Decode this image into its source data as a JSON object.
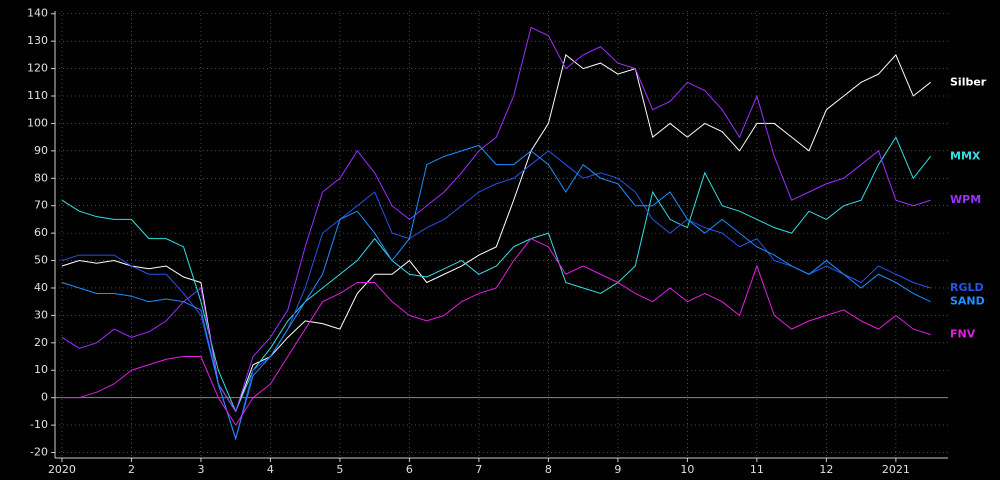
{
  "chart_data": {
    "type": "line",
    "x": [
      0,
      0.25,
      0.5,
      0.75,
      1,
      1.25,
      1.5,
      1.75,
      2,
      2.25,
      2.5,
      2.75,
      3,
      3.25,
      3.5,
      3.75,
      4,
      4.25,
      4.5,
      4.75,
      5,
      5.25,
      5.5,
      5.75,
      6,
      6.25,
      6.5,
      6.75,
      7,
      7.25,
      7.5,
      7.75,
      8,
      8.25,
      8.5,
      8.75,
      9,
      9.25,
      9.5,
      9.75,
      10,
      10.25,
      10.5,
      10.75,
      11,
      11.25,
      11.5,
      11.75,
      12,
      12.25,
      12.5
    ],
    "xlim": [
      -0.1,
      12.75
    ],
    "xticks": [
      {
        "value": 0,
        "label": "2020"
      },
      {
        "value": 1,
        "label": "2"
      },
      {
        "value": 2,
        "label": "3"
      },
      {
        "value": 3,
        "label": "4"
      },
      {
        "value": 4,
        "label": "5"
      },
      {
        "value": 5,
        "label": "6"
      },
      {
        "value": 6,
        "label": "7"
      },
      {
        "value": 7,
        "label": "8"
      },
      {
        "value": 8,
        "label": "9"
      },
      {
        "value": 9,
        "label": "10"
      },
      {
        "value": 10,
        "label": "11"
      },
      {
        "value": 11,
        "label": "12"
      },
      {
        "value": 12,
        "label": "2021"
      }
    ],
    "ylim": [
      -22,
      141
    ],
    "yticks": [
      -20,
      -10,
      0,
      10,
      20,
      30,
      40,
      50,
      60,
      70,
      80,
      90,
      100,
      110,
      120,
      130,
      140
    ],
    "grid": true,
    "series": [
      {
        "name": "Silber",
        "color": "#ffffff",
        "values": [
          48,
          50,
          49,
          50,
          48,
          47,
          48,
          44,
          42,
          5,
          -5,
          12,
          15,
          22,
          28,
          27,
          25,
          38,
          45,
          45,
          50,
          42,
          45,
          48,
          52,
          55,
          72,
          90,
          100,
          125,
          120,
          122,
          118,
          120,
          95,
          100,
          95,
          100,
          97,
          90,
          100,
          100,
          95,
          90,
          105,
          110,
          115,
          118,
          125,
          110,
          115
        ]
      },
      {
        "name": "MMX",
        "color": "#33e0e0",
        "values": [
          72,
          68,
          66,
          65,
          65,
          58,
          58,
          55,
          35,
          10,
          -5,
          10,
          18,
          28,
          35,
          40,
          45,
          50,
          58,
          50,
          45,
          44,
          47,
          50,
          45,
          48,
          55,
          58,
          60,
          42,
          40,
          38,
          42,
          48,
          75,
          65,
          62,
          82,
          70,
          68,
          65,
          62,
          60,
          68,
          65,
          70,
          72,
          85,
          95,
          80,
          88
        ]
      },
      {
        "name": "WPM",
        "color": "#9b30ff",
        "values": [
          22,
          18,
          20,
          25,
          22,
          24,
          28,
          35,
          40,
          5,
          -5,
          15,
          22,
          32,
          55,
          75,
          80,
          90,
          82,
          70,
          65,
          70,
          75,
          82,
          90,
          95,
          110,
          135,
          132,
          120,
          125,
          128,
          122,
          120,
          105,
          108,
          115,
          112,
          105,
          95,
          110,
          88,
          72,
          75,
          78,
          80,
          85,
          90,
          72,
          70,
          72
        ]
      },
      {
        "name": "RGLD",
        "color": "#2a52e8",
        "values": [
          50,
          52,
          52,
          52,
          48,
          45,
          45,
          38,
          30,
          5,
          -15,
          10,
          15,
          25,
          40,
          60,
          65,
          70,
          75,
          60,
          58,
          62,
          65,
          70,
          75,
          78,
          80,
          85,
          90,
          85,
          80,
          82,
          80,
          75,
          65,
          60,
          65,
          62,
          60,
          55,
          58,
          50,
          48,
          45,
          48,
          45,
          42,
          48,
          45,
          42,
          40
        ]
      },
      {
        "name": "SAND",
        "color": "#1e90ff",
        "values": [
          42,
          40,
          38,
          38,
          37,
          35,
          36,
          35,
          32,
          5,
          -15,
          8,
          15,
          25,
          35,
          45,
          65,
          68,
          60,
          50,
          58,
          85,
          88,
          90,
          92,
          85,
          85,
          90,
          85,
          75,
          85,
          80,
          78,
          70,
          70,
          75,
          65,
          60,
          65,
          60,
          55,
          52,
          48,
          45,
          50,
          45,
          40,
          45,
          42,
          38,
          35
        ]
      },
      {
        "name": "FNV",
        "color": "#e020e0",
        "values": [
          0,
          0,
          2,
          5,
          10,
          12,
          14,
          15,
          15,
          0,
          -10,
          0,
          5,
          15,
          25,
          35,
          38,
          42,
          42,
          35,
          30,
          28,
          30,
          35,
          38,
          40,
          50,
          58,
          55,
          45,
          48,
          45,
          42,
          38,
          35,
          40,
          35,
          38,
          35,
          30,
          48,
          30,
          25,
          28,
          30,
          32,
          28,
          25,
          30,
          25,
          23
        ]
      }
    ]
  }
}
